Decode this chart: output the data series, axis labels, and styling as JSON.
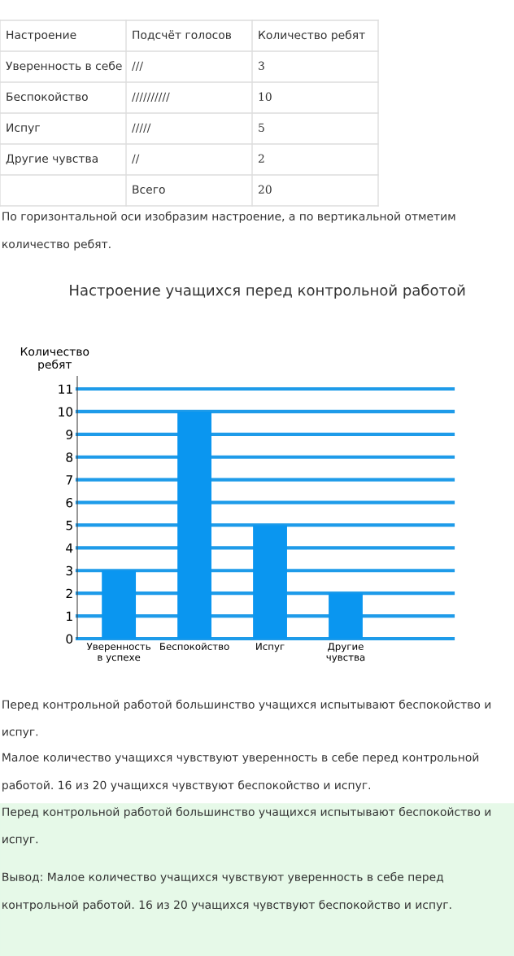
{
  "chart_data": {
    "type": "bar",
    "title": "Настроение учащихся перед контрольной работой",
    "ylabel": "Количество\nребят",
    "categories": [
      "Уверенность\nв успехе",
      "Беспокойство",
      "Испуг",
      "Другие\nчувства"
    ],
    "values": [
      3,
      10,
      5,
      2
    ],
    "color": "#0a96f0",
    "ylim": [
      0,
      11
    ],
    "yticks": [
      0,
      1,
      2,
      3,
      4,
      5,
      6,
      7,
      8,
      9,
      10,
      11
    ],
    "grid": "y",
    "annotations": [
      "Настроение",
      "Подсчёт голосов",
      "Количество ребят",
      "Уверенность в себе",
      "///",
      "3",
      "Беспокойство",
      "//////////",
      "10",
      "Испуг",
      "/////",
      "5",
      "Другие чувства",
      "//",
      "2",
      "Всего",
      "20",
      "По горизонтальной оси изобразим настроение, а по вертикальной отметим количество ребят.",
      "Перед контрольной работой большинство учащихся испытывают беспокойство и испуг.",
      "Малое количество учащихся чувствуют уверенность в себе перед контрольной работой. 16 из 20 учащихся чувствуют беспокойство и испуг.",
      "Перед контрольной работой большинство учащихся испытывают беспокойство и испуг.",
      "Вывод: Малое количество учащихся чувствуют уверенность в себе перед контрольной работой. 16 из 20 учащихся чувствуют беспокойство и испуг."
    ]
  }
}
